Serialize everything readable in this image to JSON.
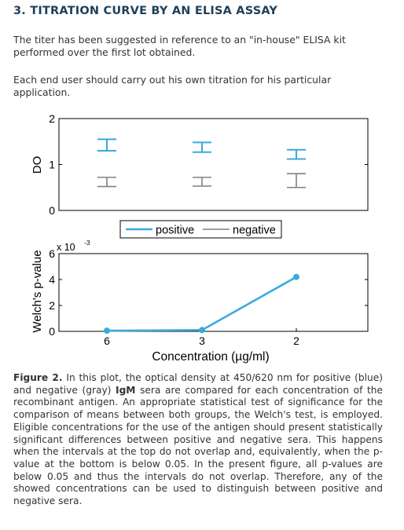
{
  "section_title": "3. TITRATION CURVE BY AN ELISA ASSAY",
  "paragraph_1": "The titer has been suggested in reference to an \"in-house\" ELISA kit performed over the first lot obtained.",
  "paragraph_2": "Each end user should carry out his own titration for his particular application.",
  "caption": {
    "label": "Figure 2.",
    "part1": " In this plot, the optical density at 450/620 nm for positive (blue) and negative (gray) ",
    "bold_term": "IgM",
    "part2": " sera are compared for each concentration of the recombinant antigen. An appropriate statistical test of significance for the comparison of means between both groups, the Welch's test, is employed. Eligible concentrations for the use of the antigen should present statistically significant differences between positive and negative sera. This happens when the intervals at the top do not overlap and, equivalently, when the p-value at the bottom is below 0.05. In the present figure, all p-values are below 0.05 and thus the intervals do not overlap. Therefore, any of the showed concentrations can be used to distinguish between positive and negative sera."
  },
  "colors": {
    "positive": "#3aaadc",
    "negative": "#808080",
    "heading": "#1f3f5a"
  },
  "chart_data": [
    {
      "type": "errorbar",
      "ylabel": "DO",
      "ylim": [
        0,
        2
      ],
      "yticks": [
        "0",
        "1",
        "2"
      ],
      "categories": [
        "6",
        "3",
        "2"
      ],
      "grid": false,
      "legend_position": "below",
      "series": [
        {
          "name": "positive",
          "low": [
            1.3,
            1.27,
            1.12
          ],
          "high": [
            1.55,
            1.48,
            1.32
          ]
        },
        {
          "name": "negative",
          "low": [
            0.52,
            0.53,
            0.5
          ],
          "high": [
            0.72,
            0.72,
            0.8
          ]
        }
      ]
    },
    {
      "type": "line",
      "ylabel": "Welch's p-value",
      "xlabel": "Concentration (µg/ml)",
      "scale_label": "x 10",
      "scale_exponent": "-3",
      "ylim": [
        0,
        6
      ],
      "yticks": [
        "0",
        "2",
        "4",
        "6"
      ],
      "categories": [
        "6",
        "3",
        "2"
      ],
      "values": [
        5e-05,
        0.0001,
        0.0042
      ],
      "grid": false
    }
  ]
}
